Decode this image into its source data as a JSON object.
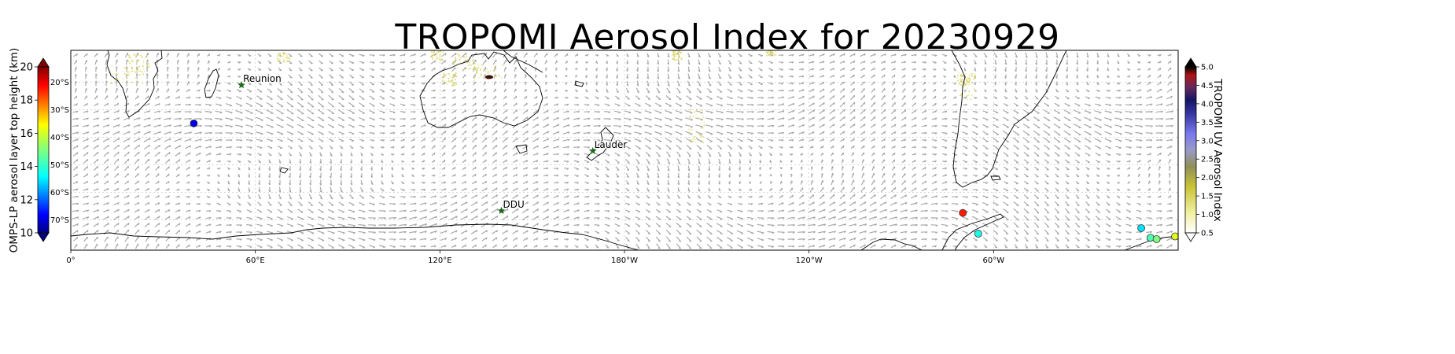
{
  "title": "TROPOMI Aerosol Index for 20230929",
  "map": {
    "lon_ticks": [
      "0°",
      "60°E",
      "120°E",
      "180°W",
      "120°W",
      "60°W"
    ],
    "lat_ticks": [
      "20°S",
      "30°S",
      "40°S",
      "50°S",
      "60°S",
      "70°S"
    ],
    "stations": [
      {
        "name": "Reunion",
        "lon": 55.5,
        "lat": -21.1
      },
      {
        "name": "Lauder",
        "lon": 169.7,
        "lat": -45.0
      },
      {
        "name": "DDU",
        "lon": 140.0,
        "lat": -66.7
      }
    ],
    "omps_points": [
      {
        "lon": 40,
        "lat": -35,
        "height": 11.0
      },
      {
        "lon": 290,
        "lat": -67.5,
        "height": 18.5
      },
      {
        "lon": 295,
        "lat": -75,
        "height": 14.0
      },
      {
        "lon": 348,
        "lat": -73,
        "height": 13.5
      },
      {
        "lon": 351,
        "lat": -76.5,
        "height": 14.5
      },
      {
        "lon": 353,
        "lat": -77,
        "height": 15.0
      },
      {
        "lon": 359,
        "lat": -76,
        "height": 16.0
      }
    ],
    "colors": {
      "station_marker": "#1f6b1f",
      "station_label": "#00008b",
      "coastline": "#000000",
      "wind_vectors": "#9a9a9a"
    }
  },
  "colorbar_left": {
    "label": "OMPS-LP aerosol layer top height (km)",
    "ticks": [
      "20",
      "18",
      "16",
      "14",
      "12",
      "10"
    ],
    "range": [
      10,
      20
    ],
    "colormap": "jet"
  },
  "colorbar_right": {
    "label": "TROPOMI UV Aerosol Index",
    "ticks": [
      "5.0",
      "4.5",
      "4.0",
      "3.5",
      "3.0",
      "2.5",
      "2.0",
      "1.5",
      "1.0",
      "0.5"
    ],
    "range": [
      0.5,
      5.0
    ]
  }
}
